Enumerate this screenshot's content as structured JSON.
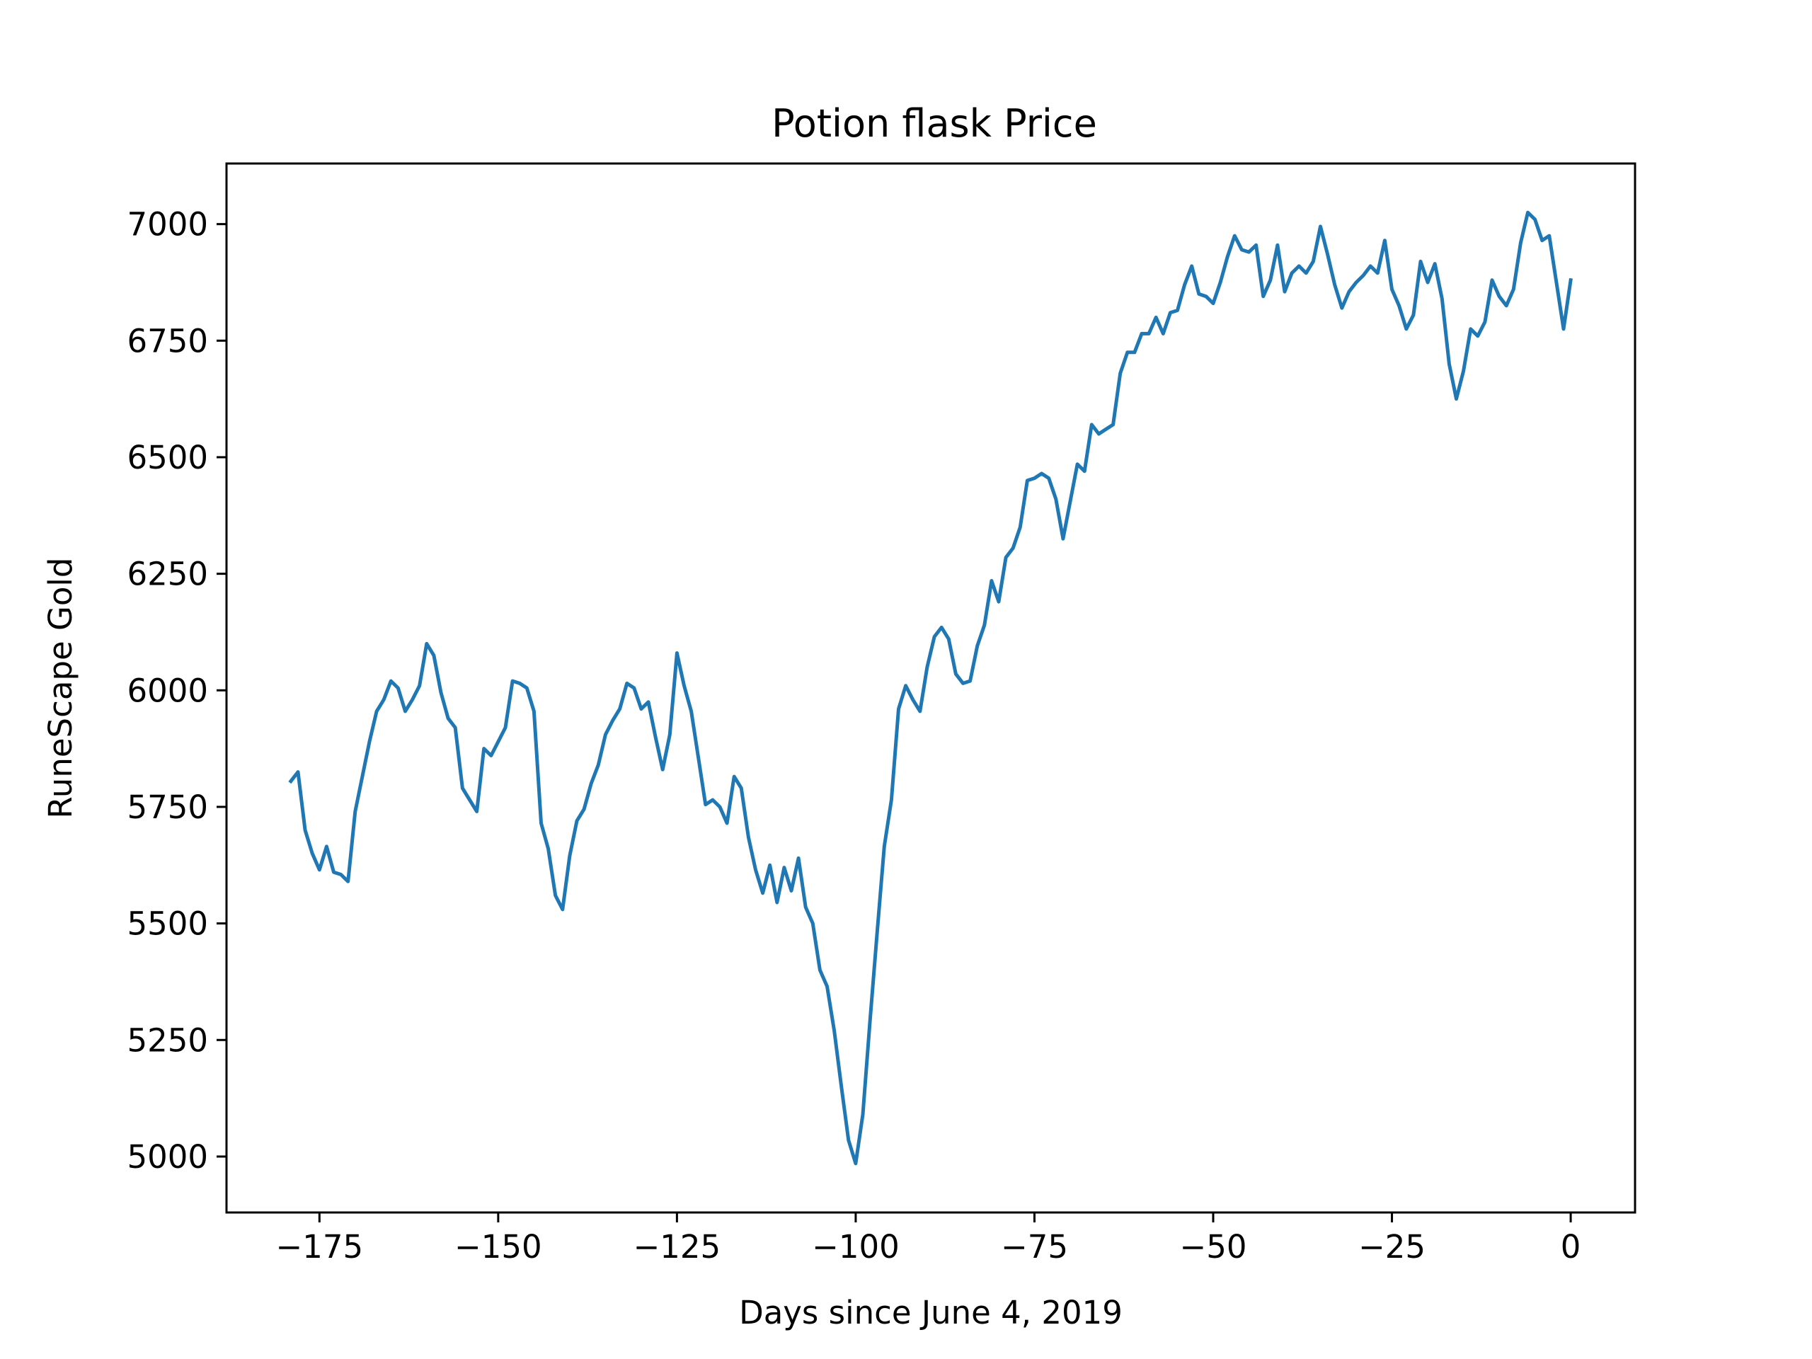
{
  "chart_data": {
    "type": "line",
    "title": "Potion flask Price",
    "xlabel": "Days since June 4, 2019",
    "ylabel": "RuneScape Gold",
    "xlim": [
      -188,
      9
    ],
    "ylim": [
      4880,
      7130
    ],
    "xticks": [
      -175,
      -150,
      -125,
      -100,
      -75,
      -50,
      -25,
      0
    ],
    "xtick_labels": [
      "−175",
      "−150",
      "−125",
      "−100",
      "−75",
      "−50",
      "−25",
      "0"
    ],
    "yticks": [
      5000,
      5250,
      5500,
      5750,
      6000,
      6250,
      6500,
      6750,
      7000
    ],
    "ytick_labels": [
      "5000",
      "5250",
      "5500",
      "5750",
      "6000",
      "6250",
      "6500",
      "6750",
      "7000"
    ],
    "grid": false,
    "series": [
      {
        "color": "#1f77b4",
        "x": [
          -179,
          -178,
          -177,
          -176,
          -175,
          -174,
          -173,
          -172,
          -171,
          -170,
          -169,
          -168,
          -167,
          -166,
          -165,
          -164,
          -163,
          -162,
          -161,
          -160,
          -159,
          -158,
          -157,
          -156,
          -155,
          -154,
          -153,
          -152,
          -151,
          -150,
          -149,
          -148,
          -147,
          -146,
          -145,
          -144,
          -143,
          -142,
          -141,
          -140,
          -139,
          -138,
          -137,
          -136,
          -135,
          -134,
          -133,
          -132,
          -131,
          -130,
          -129,
          -128,
          -127,
          -126,
          -125,
          -124,
          -123,
          -122,
          -121,
          -120,
          -119,
          -118,
          -117,
          -116,
          -115,
          -114,
          -113,
          -112,
          -111,
          -110,
          -109,
          -108,
          -107,
          -106,
          -105,
          -104,
          -103,
          -102,
          -101,
          -100,
          -99,
          -98,
          -97,
          -96,
          -95,
          -94,
          -93,
          -92,
          -91,
          -90,
          -89,
          -88,
          -87,
          -86,
          -85,
          -84,
          -83,
          -82,
          -81,
          -80,
          -79,
          -78,
          -77,
          -76,
          -75,
          -74,
          -73,
          -72,
          -71,
          -70,
          -69,
          -68,
          -67,
          -66,
          -65,
          -64,
          -63,
          -62,
          -61,
          -60,
          -59,
          -58,
          -57,
          -56,
          -55,
          -54,
          -53,
          -52,
          -51,
          -50,
          -49,
          -48,
          -47,
          -46,
          -45,
          -44,
          -43,
          -42,
          -41,
          -40,
          -39,
          -38,
          -37,
          -36,
          -35,
          -34,
          -33,
          -32,
          -31,
          -30,
          -29,
          -28,
          -27,
          -26,
          -25,
          -24,
          -23,
          -22,
          -21,
          -20,
          -19,
          -18,
          -17,
          -16,
          -15,
          -14,
          -13,
          -12,
          -11,
          -10,
          -9,
          -8,
          -7,
          -6,
          -5,
          -4,
          -3,
          -2,
          -1,
          0
        ],
        "y": [
          5805,
          5825,
          5700,
          5650,
          5615,
          5665,
          5610,
          5605,
          5590,
          5740,
          5815,
          5890,
          5955,
          5980,
          6020,
          6005,
          5955,
          5980,
          6010,
          6100,
          6075,
          5995,
          5940,
          5920,
          5790,
          5765,
          5740,
          5875,
          5860,
          5890,
          5920,
          6020,
          6015,
          6005,
          5955,
          5715,
          5660,
          5560,
          5530,
          5645,
          5720,
          5745,
          5800,
          5840,
          5905,
          5935,
          5960,
          6015,
          6005,
          5960,
          5975,
          5900,
          5830,
          5905,
          6080,
          6010,
          5955,
          5855,
          5755,
          5765,
          5750,
          5715,
          5815,
          5790,
          5685,
          5615,
          5565,
          5625,
          5545,
          5620,
          5570,
          5640,
          5535,
          5500,
          5400,
          5365,
          5270,
          5150,
          5035,
          4985,
          5090,
          5290,
          5480,
          5665,
          5765,
          5960,
          6010,
          5980,
          5955,
          6050,
          6115,
          6135,
          6110,
          6035,
          6015,
          6020,
          6095,
          6140,
          6235,
          6190,
          6285,
          6305,
          6350,
          6450,
          6455,
          6465,
          6455,
          6410,
          6325,
          6405,
          6485,
          6470,
          6570,
          6550,
          6560,
          6570,
          6680,
          6725,
          6725,
          6765,
          6765,
          6800,
          6765,
          6810,
          6815,
          6870,
          6910,
          6850,
          6845,
          6830,
          6875,
          6930,
          6975,
          6945,
          6940,
          6955,
          6845,
          6880,
          6955,
          6855,
          6895,
          6910,
          6895,
          6920,
          6995,
          6935,
          6870,
          6820,
          6855,
          6875,
          6890,
          6910,
          6895,
          6965,
          6860,
          6825,
          6775,
          6805,
          6920,
          6875,
          6915,
          6840,
          6700,
          6625,
          6685,
          6775,
          6760,
          6790,
          6880,
          6845,
          6825,
          6860,
          6960,
          7025,
          7010,
          6965,
          6975,
          6875,
          6775,
          6880
        ]
      }
    ]
  }
}
